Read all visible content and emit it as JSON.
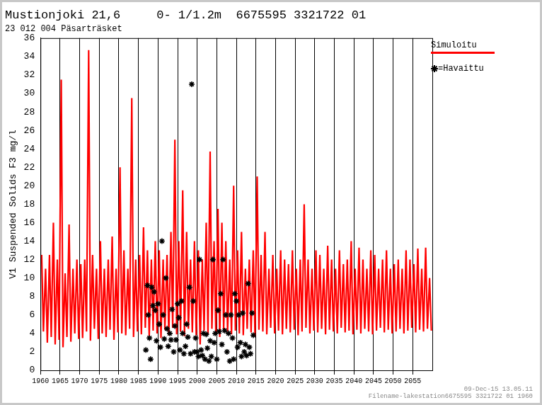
{
  "chart_data": {
    "type": "line",
    "title": "Mustionjoki 21,6     0- 1/1.2m  6675595 3321722 01",
    "subtitle": "23 012 004 Päsarträsket",
    "y_label": "V1 Suspended Solids F3 mg/l",
    "annotations": [
      "09-Dec-15 13.05.11",
      "Filename-lakestation6675595 3321722 01 1960"
    ],
    "xlim": [
      1960,
      2060
    ],
    "xticks": [
      1960,
      1965,
      1970,
      1975,
      1980,
      1985,
      1990,
      1995,
      2000,
      2005,
      2010,
      2015,
      2020,
      2025,
      2030,
      2035,
      2040,
      2045,
      2050,
      2055
    ],
    "ylim": [
      0,
      36
    ],
    "yticks": [
      0,
      2,
      4,
      6,
      8,
      10,
      12,
      14,
      16,
      18,
      20,
      22,
      24,
      26,
      28,
      30,
      32,
      34,
      36
    ],
    "grid": true,
    "legend": "top right",
    "series": [
      {
        "name": "Simuloitu",
        "type": "line",
        "color": "#ff0000",
        "line_style": "solid",
        "x": [
          1960.3,
          1960.75,
          1961.3,
          1961.75,
          1962.3,
          1962.75,
          1963.3,
          1963.75,
          1964.3,
          1964.75,
          1965.3,
          1965.75,
          1966.3,
          1966.75,
          1967.3,
          1967.75,
          1968.3,
          1968.75,
          1969.3,
          1969.75,
          1970.3,
          1970.75,
          1971.3,
          1971.75,
          1972.3,
          1972.75,
          1973.3,
          1973.75,
          1974.3,
          1974.75,
          1975.3,
          1975.75,
          1976.3,
          1976.75,
          1977.3,
          1977.75,
          1978.3,
          1978.75,
          1979.3,
          1979.75,
          1980.3,
          1980.75,
          1981.3,
          1981.75,
          1982.3,
          1982.75,
          1983.3,
          1983.75,
          1984.3,
          1984.75,
          1985.3,
          1985.75,
          1986.3,
          1986.75,
          1987.3,
          1987.75,
          1988.3,
          1988.75,
          1989.3,
          1989.75,
          1990.3,
          1990.75,
          1991.3,
          1991.75,
          1992.3,
          1992.75,
          1993.3,
          1993.75,
          1994.3,
          1994.75,
          1995.3,
          1995.75,
          1996.3,
          1996.75,
          1997.3,
          1997.75,
          1998.3,
          1998.75,
          1999.3,
          1999.75,
          2000.3,
          2000.75,
          2001.3,
          2001.75,
          2002.3,
          2002.75,
          2003.3,
          2003.75,
          2004.3,
          2004.75,
          2005.3,
          2005.75,
          2006.3,
          2006.75,
          2007.3,
          2007.75,
          2008.3,
          2008.75,
          2009.3,
          2009.75,
          2010.3,
          2010.75,
          2011.3,
          2011.75,
          2012.3,
          2012.75,
          2013.3,
          2013.75,
          2014.3,
          2014.75,
          2015.3,
          2015.75,
          2016.3,
          2016.75,
          2017.3,
          2017.75,
          2018.3,
          2018.75,
          2019.3,
          2019.75,
          2020.3,
          2020.75,
          2021.3,
          2021.75,
          2022.3,
          2022.75,
          2023.3,
          2023.75,
          2024.3,
          2024.75,
          2025.3,
          2025.75,
          2026.3,
          2026.75,
          2027.3,
          2027.75,
          2028.3,
          2028.75,
          2029.3,
          2029.75,
          2030.3,
          2030.75,
          2031.3,
          2031.75,
          2032.3,
          2032.75,
          2033.3,
          2033.75,
          2034.3,
          2034.75,
          2035.3,
          2035.75,
          2036.3,
          2036.75,
          2037.3,
          2037.75,
          2038.3,
          2038.75,
          2039.3,
          2039.75,
          2040.3,
          2040.75,
          2041.3,
          2041.75,
          2042.3,
          2042.75,
          2043.3,
          2043.75,
          2044.3,
          2044.75,
          2045.3,
          2045.75,
          2046.3,
          2046.75,
          2047.3,
          2047.75,
          2048.3,
          2048.75,
          2049.3,
          2049.75,
          2050.3,
          2050.75,
          2051.3,
          2051.75,
          2052.3,
          2052.75,
          2053.3,
          2053.75,
          2054.3,
          2054.75,
          2055.3,
          2055.75,
          2056.3,
          2056.75,
          2057.3,
          2057.75,
          2058.3,
          2058.75,
          2059.3,
          2059.75
        ],
        "values": [
          12.5,
          4.2,
          11,
          3.0,
          12.5,
          3.6,
          16,
          2.8,
          12,
          3.3,
          31.5,
          2.5,
          10.5,
          3.6,
          15.8,
          3.1,
          11,
          4.0,
          12,
          3.4,
          11.5,
          3.5,
          12,
          4.2,
          34.7,
          3.2,
          12.5,
          4.5,
          11,
          3.4,
          14,
          4.0,
          11,
          3.6,
          12,
          4.4,
          14.5,
          3.3,
          11,
          4.1,
          22,
          4.0,
          13,
          3.8,
          11,
          4.5,
          29.5,
          3.6,
          12,
          4.2,
          12.5,
          3.9,
          15.5,
          4.6,
          13,
          3.7,
          12,
          4.3,
          14,
          4.0,
          13,
          3.5,
          12,
          4.4,
          12.5,
          3.8,
          15,
          4.6,
          25,
          3.9,
          14,
          4.2,
          19.5,
          3.7,
          15,
          4.5,
          12,
          4.1,
          14,
          3.8,
          13,
          2.8,
          12,
          4.3,
          16,
          3.9,
          23.7,
          4.5,
          14,
          4.0,
          17.5,
          3.6,
          16,
          4.4,
          14,
          4.2,
          12,
          3.9,
          20,
          4.3,
          13,
          4.0,
          15,
          3.8,
          11,
          4.5,
          12,
          4.1,
          13,
          3.7,
          21,
          4.4,
          12.5,
          4.2,
          15,
          3.9,
          11,
          4.6,
          12.5,
          4.0,
          11,
          4.3,
          13,
          3.9,
          12,
          4.5,
          11.5,
          4.1,
          13,
          4.4,
          11,
          3.8,
          12,
          4.2,
          18,
          4.6,
          12,
          4.0,
          11,
          4.3,
          13,
          4.1,
          12.5,
          4.5,
          11,
          3.9,
          13.5,
          4.4,
          12,
          4.2,
          11,
          4.0,
          13,
          4.6,
          11.5,
          4.1,
          12,
          4.3,
          14,
          3.9,
          11,
          4.4,
          13.3,
          4.0,
          12,
          4.5,
          11,
          4.2,
          13,
          3.9,
          12.5,
          4.3,
          11,
          4.6,
          12,
          4.1,
          13,
          4.4,
          11,
          4.0,
          11.5,
          4.2,
          12,
          4.5,
          11,
          4.0,
          13,
          4.3,
          12,
          4.6,
          11.5,
          4.1,
          13.2,
          4.4,
          11,
          4.2,
          13.3,
          4.5,
          10,
          4.3
        ]
      },
      {
        "name": "=Havaittu",
        "type": "scatter",
        "color": "#000000",
        "marker": "star",
        "x": [
          1986.9,
          1987.3,
          1987.5,
          1987.8,
          1988.1,
          1988.4,
          1988.7,
          1989.0,
          1989.3,
          1989.6,
          1990.0,
          1990.3,
          1990.6,
          1991.0,
          1991.3,
          1991.6,
          1992.0,
          1992.3,
          1992.6,
          1993.0,
          1993.3,
          1993.6,
          1994.0,
          1994.3,
          1994.6,
          1995.0,
          1995.3,
          1995.6,
          1996.0,
          1996.3,
          1996.6,
          1997.0,
          1997.3,
          1997.6,
          1998.0,
          1998.3,
          1998.6,
          1999.0,
          1999.3,
          1999.6,
          2000.0,
          2000.3,
          2000.6,
          2001.0,
          2001.3,
          2001.6,
          2002.0,
          2002.3,
          2002.6,
          2003.0,
          2003.3,
          2003.6,
          2004.0,
          2004.3,
          2004.6,
          2005.0,
          2005.3,
          2005.6,
          2006.0,
          2006.3,
          2006.6,
          2007.0,
          2007.3,
          2007.6,
          2008.0,
          2008.3,
          2008.6,
          2009.0,
          2009.3,
          2009.6,
          2010.0,
          2010.3,
          2010.6,
          2011.0,
          2011.3,
          2011.6,
          2012.0,
          2012.3,
          2012.6,
          2013.0,
          2013.3,
          2013.6,
          2014.0,
          2014.3
        ],
        "values": [
          2.2,
          9.2,
          6,
          3.5,
          1.2,
          9,
          7,
          8.5,
          6.5,
          3.2,
          7.2,
          5,
          2.5,
          14,
          6,
          3.4,
          10,
          4.5,
          2.6,
          4,
          3.3,
          6.6,
          2,
          4.8,
          3.3,
          7.2,
          5.7,
          2.2,
          7.5,
          4,
          1.8,
          2.6,
          5,
          3.6,
          9,
          1.8,
          31,
          7.5,
          2,
          3.5,
          2,
          1.5,
          12,
          2.2,
          1.6,
          4,
          1.2,
          3.9,
          2.4,
          1,
          3.2,
          1.5,
          12,
          3,
          4,
          1.2,
          6.5,
          4.2,
          8.3,
          2.8,
          12,
          4.3,
          6,
          2,
          4,
          1,
          6,
          3.5,
          1.2,
          8.3,
          7.5,
          2.5,
          6,
          3,
          1.5,
          6.2,
          2,
          2.8,
          1.6,
          9.4,
          2.5,
          1.8,
          6.2,
          3.8
        ]
      }
    ]
  }
}
